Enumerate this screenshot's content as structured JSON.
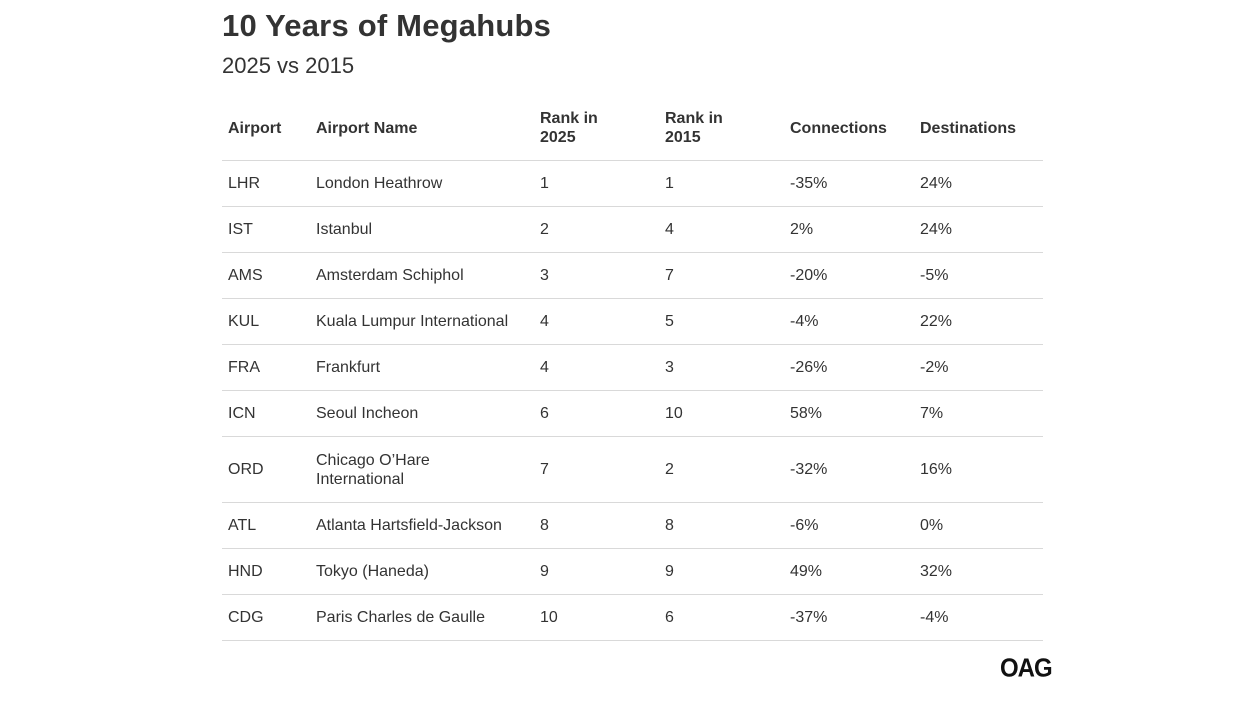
{
  "header": {
    "title": "10 Years of Megahubs",
    "subtitle": "2025 vs 2015"
  },
  "table": {
    "columns": [
      "Airport",
      "Airport Name",
      "Rank in 2025",
      "Rank in 2015",
      "Connections",
      "Destinations"
    ],
    "rows": [
      [
        "LHR",
        "London Heathrow",
        "1",
        "1",
        "-35%",
        "24%"
      ],
      [
        "IST",
        "Istanbul",
        "2",
        "4",
        "2%",
        "24%"
      ],
      [
        "AMS",
        "Amsterdam Schiphol",
        "3",
        "7",
        "-20%",
        "-5%"
      ],
      [
        "KUL",
        "Kuala Lumpur International",
        "4",
        "5",
        "-4%",
        "22%"
      ],
      [
        "FRA",
        "Frankfurt",
        "4",
        "3",
        "-26%",
        "-2%"
      ],
      [
        "ICN",
        "Seoul Incheon",
        "6",
        "10",
        "58%",
        "7%"
      ],
      [
        "ORD",
        "Chicago O’Hare International",
        "7",
        "2",
        "-32%",
        "16%"
      ],
      [
        "ATL",
        "Atlanta Hartsfield-Jackson",
        "8",
        "8",
        "-6%",
        "0%"
      ],
      [
        "HND",
        "Tokyo (Haneda)",
        "9",
        "9",
        "49%",
        "32%"
      ],
      [
        "CDG",
        "Paris Charles de Gaulle",
        "10",
        "6",
        "-37%",
        "-4%"
      ]
    ]
  },
  "brand": {
    "logo_text": "OAG"
  }
}
